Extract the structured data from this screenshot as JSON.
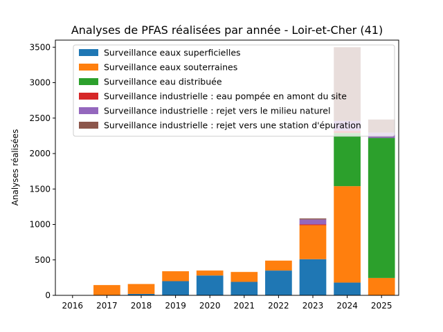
{
  "chart_data": {
    "type": "bar",
    "stacked": true,
    "title": "Analyses de PFAS réalisées par année - Loir-et-Cher (41)",
    "xlabel": "",
    "ylabel": "Analyses réalisées",
    "ylim": [
      0,
      3600
    ],
    "yticks": [
      0,
      500,
      1000,
      1500,
      2000,
      2500,
      3000,
      3500
    ],
    "ytick_labels": [
      "0",
      "500",
      "1000",
      "1500",
      "2000",
      "2500",
      "3000",
      "3500"
    ],
    "categories": [
      "2016",
      "2017",
      "2018",
      "2019",
      "2020",
      "2021",
      "2022",
      "2023",
      "2024",
      "2025"
    ],
    "legend_position": "top-right",
    "series": [
      {
        "name": "Surveillance eaux superficielles",
        "color": "#1f77b4",
        "values": [
          0,
          0,
          20,
          200,
          280,
          190,
          350,
          510,
          180,
          0
        ]
      },
      {
        "name": "Surveillance eaux souterraines",
        "color": "#ff7f0e",
        "values": [
          0,
          145,
          140,
          140,
          70,
          140,
          140,
          480,
          1360,
          245
        ]
      },
      {
        "name": "Surveillance eau distribuée",
        "color": "#2ca02c",
        "values": [
          0,
          0,
          0,
          0,
          0,
          0,
          0,
          0,
          750,
          1975
        ]
      },
      {
        "name": "Surveillance industrielle : eau pompée en amont du site",
        "color": "#d62728",
        "values": [
          0,
          0,
          0,
          0,
          0,
          0,
          0,
          10,
          30,
          0
        ]
      },
      {
        "name": "Surveillance industrielle : rejet vers le milieu naturel",
        "color": "#9467bd",
        "values": [
          0,
          0,
          0,
          0,
          0,
          0,
          0,
          70,
          140,
          75
        ]
      },
      {
        "name": "Surveillance industrielle : rejet vers une station d'épuration",
        "color": "#8c564b",
        "values": [
          0,
          0,
          0,
          0,
          0,
          0,
          0,
          15,
          1040,
          185
        ]
      }
    ]
  }
}
